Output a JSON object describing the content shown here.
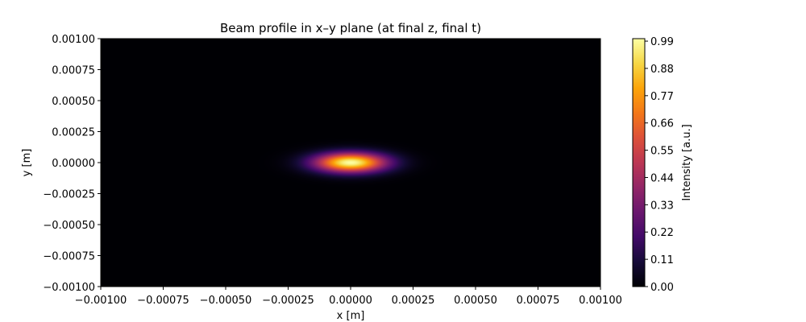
{
  "chart_data": {
    "type": "heatmap",
    "title": "Beam profile in x–y plane (at final z, final t)",
    "xlabel": "x [m]",
    "ylabel": "y [m]",
    "xlim": [
      -0.001,
      0.001
    ],
    "ylim": [
      -0.001,
      0.001
    ],
    "x_ticks": [
      -0.001,
      -0.00075,
      -0.0005,
      -0.00025,
      0.0,
      0.00025,
      0.0005,
      0.00075,
      0.001
    ],
    "x_tick_labels": [
      "−0.00100",
      "−0.00075",
      "−0.00050",
      "−0.00025",
      "0.00000",
      "0.00025",
      "0.00050",
      "0.00075",
      "0.00100"
    ],
    "y_ticks": [
      0.001,
      0.00075,
      0.0005,
      0.00025,
      0.0,
      -0.00025,
      -0.0005,
      -0.00075,
      -0.001
    ],
    "y_tick_labels": [
      "0.00100",
      "0.00075",
      "0.00050",
      "0.00025",
      "0.00000",
      "−0.00025",
      "−0.00050",
      "−0.00075",
      "−0.00100"
    ],
    "field": {
      "kind": "gaussian",
      "center": [
        0.0,
        0.0
      ],
      "sigma_x": 0.0001,
      "sigma_y": 5.5e-05,
      "peak": 1.0
    },
    "colormap": "inferno",
    "colorbar": {
      "label": "Intensity [a.u.]",
      "range": [
        0.0,
        1.0
      ],
      "ticks": [
        0.0,
        0.11,
        0.22,
        0.33,
        0.44,
        0.55,
        0.66,
        0.77,
        0.88,
        0.99
      ],
      "tick_labels": [
        "0.00",
        "0.11",
        "0.22",
        "0.33",
        "0.44",
        "0.55",
        "0.66",
        "0.77",
        "0.88",
        "0.99"
      ]
    },
    "grid": false
  }
}
